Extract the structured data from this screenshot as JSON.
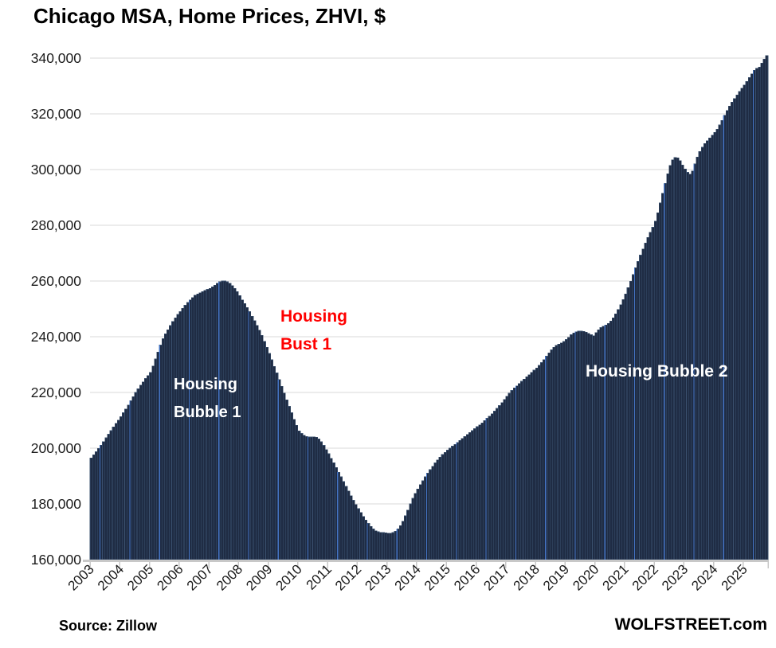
{
  "title": "Chicago MSA, Home Prices, ZHVI, $",
  "annotations": {
    "bubble1": {
      "line1": "Housing",
      "line2": "Bubble 1"
    },
    "bust1": {
      "line1": "Housing",
      "line2": "Bust 1"
    },
    "bubble2": {
      "text": "Housing Bubble 2"
    }
  },
  "footer": {
    "source": "Source: Zillow",
    "brand": "WOLFSTREET.com"
  },
  "colors": {
    "bar_fill": "#1f2c44",
    "bar_edge": "#3a506e",
    "year_line": "#4474c4",
    "gridline": "#d9d9d9",
    "axis": "#c8c8c8",
    "annotation_white": "#ffffff",
    "annotation_red": "#ff0000",
    "text": "#000000"
  },
  "chart_data": {
    "type": "bar",
    "title": "Chicago MSA, Home Prices, ZHVI, $",
    "unit": "USD",
    "frequency": "monthly",
    "start": "2003-01",
    "end": "2025-10",
    "grid": "horizontal",
    "ylim": [
      160000,
      340000
    ],
    "y_ticks": [
      {
        "value": 160000,
        "label": "160,000"
      },
      {
        "value": 180000,
        "label": "180,000"
      },
      {
        "value": 200000,
        "label": "200,000"
      },
      {
        "value": 220000,
        "label": "220,000"
      },
      {
        "value": 240000,
        "label": "240,000"
      },
      {
        "value": 260000,
        "label": "260,000"
      },
      {
        "value": 280000,
        "label": "280,000"
      },
      {
        "value": 300000,
        "label": "300,000"
      },
      {
        "value": 320000,
        "label": "320,000"
      },
      {
        "value": 340000,
        "label": "340,000"
      }
    ],
    "x_tick_labels": [
      "2003",
      "2004",
      "2005",
      "2006",
      "2007",
      "2008",
      "2009",
      "2010",
      "2011",
      "2012",
      "2013",
      "2014",
      "2015",
      "2016",
      "2017",
      "2018",
      "2019",
      "2020",
      "2021",
      "2022",
      "2023",
      "2024",
      "2025"
    ],
    "values": [
      196500,
      197600,
      198700,
      199900,
      201100,
      202400,
      203700,
      205000,
      206300,
      207600,
      208900,
      210100,
      211300,
      212700,
      214100,
      215500,
      217000,
      218500,
      220000,
      221300,
      222600,
      223800,
      225000,
      226100,
      227200,
      229500,
      232000,
      234500,
      237000,
      239300,
      241000,
      242500,
      244000,
      245500,
      246800,
      248000,
      249000,
      250200,
      251300,
      252300,
      253200,
      254100,
      254900,
      255400,
      255800,
      256200,
      256600,
      257000,
      257400,
      257900,
      258500,
      259200,
      259700,
      260000,
      260000,
      259700,
      259200,
      258400,
      257400,
      256200,
      254800,
      253200,
      251900,
      250500,
      249000,
      247400,
      245800,
      244100,
      242400,
      240500,
      238400,
      236200,
      234000,
      231700,
      229400,
      227000,
      224600,
      222200,
      219800,
      217400,
      215000,
      212700,
      210400,
      208200,
      206200,
      205300,
      204600,
      204200,
      204000,
      204000,
      204100,
      203900,
      203300,
      202300,
      201000,
      199500,
      198000,
      196400,
      194800,
      193100,
      191400,
      189700,
      188000,
      186300,
      184600,
      182900,
      181300,
      179800,
      178300,
      176900,
      175500,
      174200,
      173000,
      171900,
      171000,
      170400,
      170000,
      169800,
      169700,
      169600,
      169500,
      169500,
      169700,
      170200,
      171000,
      172200,
      173800,
      175700,
      177800,
      180000,
      182000,
      183800,
      185400,
      186900,
      188300,
      189700,
      191000,
      192300,
      193500,
      194700,
      195800,
      196800,
      197700,
      198500,
      199300,
      200000,
      200700,
      201400,
      202100,
      202800,
      203500,
      204200,
      204900,
      205600,
      206300,
      207000,
      207700,
      208400,
      209100,
      209900,
      210700,
      211500,
      212400,
      213300,
      214300,
      215300,
      216400,
      217500,
      218600,
      219700,
      220700,
      221600,
      222400,
      223200,
      224000,
      224800,
      225600,
      226400,
      227200,
      228000,
      228800,
      229700,
      230700,
      231800,
      233000,
      234200,
      235300,
      236200,
      236900,
      237400,
      237800,
      238300,
      239000,
      239800,
      240700,
      241400,
      241800,
      242000,
      242000,
      241900,
      241600,
      241200,
      240700,
      240400,
      241500,
      242500,
      243300,
      243800,
      244200,
      244800,
      245600,
      246800,
      248200,
      249800,
      251500,
      253400,
      255400,
      257600,
      259900,
      262300,
      264700,
      267000,
      269300,
      271500,
      273600,
      275600,
      277500,
      279300,
      281500,
      284500,
      288000,
      291500,
      295000,
      298500,
      301500,
      303500,
      304400,
      304200,
      303200,
      301700,
      300200,
      299000,
      298400,
      299500,
      302000,
      304500,
      306500,
      308000,
      309300,
      310400,
      311400,
      312300,
      313300,
      314500,
      316000,
      317700,
      319500,
      321200,
      322800,
      324200,
      325500,
      326800,
      328000,
      329200,
      330400,
      331600,
      333000,
      334400,
      335600,
      336400,
      336800,
      338200,
      339700,
      340900
    ]
  }
}
